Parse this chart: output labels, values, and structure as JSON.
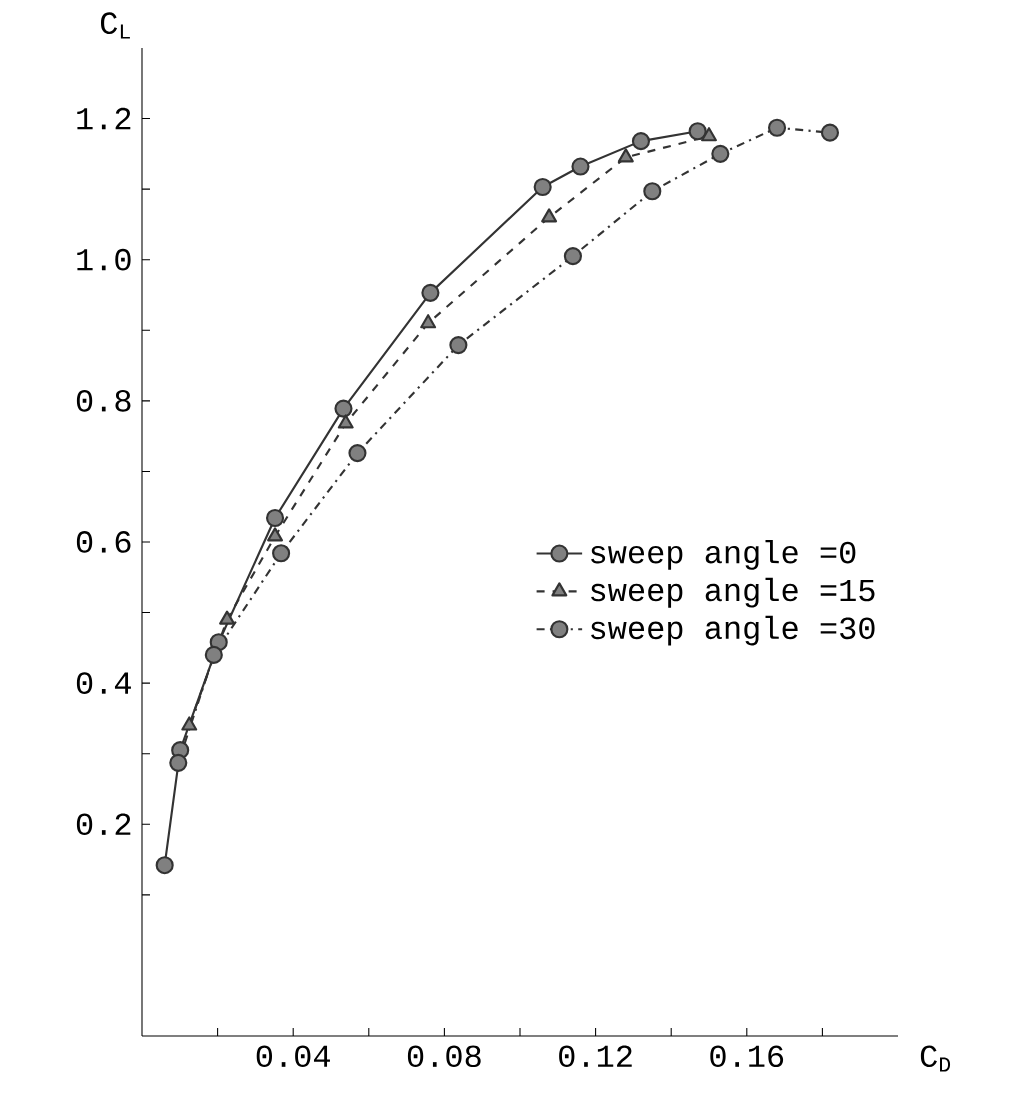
{
  "chart_data": {
    "type": "line",
    "xlabel": "C$_{D}$",
    "ylabel": "C$_{L}$",
    "xlim": [
      0,
      0.2
    ],
    "ylim": [
      -0.1,
      1.3
    ],
    "xticks": [
      {
        "value": 0.02,
        "label": null
      },
      0.04,
      {
        "value": 0.06,
        "label": null
      },
      0.08,
      {
        "value": 0.1,
        "label": null
      },
      0.12,
      {
        "value": 0.14,
        "label": null
      },
      0.16,
      {
        "value": 0.18,
        "label": null
      }
    ],
    "yticks": [
      {
        "value": 0.1,
        "label": null
      },
      0.2,
      {
        "value": 0.3,
        "label": null
      },
      0.4,
      {
        "value": 0.5,
        "label": null
      },
      0.6,
      {
        "value": 0.7,
        "label": null
      },
      0.8,
      {
        "value": 0.9,
        "label": null
      },
      {
        "value": 1.0,
        "label": "1.0"
      },
      {
        "value": 1.1,
        "label": null
      },
      1.2
    ],
    "grid": false,
    "legend": "right",
    "series": [
      {
        "name": "sweep angle =0",
        "color": "#333333",
        "marker": "circle",
        "line_style": "solid",
        "x": [
          0.006,
          0.0101,
          0.0203,
          0.0352,
          0.0533,
          0.0763,
          0.106,
          0.116,
          0.132,
          0.147
        ],
        "values": [
          0.142,
          0.305,
          0.458,
          0.634,
          0.789,
          0.953,
          1.103,
          1.132,
          1.168,
          1.182
        ]
      },
      {
        "name": "sweep angle =15",
        "color": "#333333",
        "marker": "triangle",
        "line_style": "dashed",
        "x": [
          0.0125,
          0.0225,
          0.0352,
          0.0539,
          0.0757,
          0.1077,
          0.128,
          0.15
        ],
        "values": [
          0.34,
          0.49,
          0.608,
          0.768,
          0.91,
          1.06,
          1.145,
          1.175
        ]
      },
      {
        "name": "sweep angle =30",
        "color": "#333333",
        "marker": "circle",
        "line_style": "dashdot",
        "x": [
          0.0096,
          0.019,
          0.0368,
          0.057,
          0.0837,
          0.114,
          0.135,
          0.153,
          0.168,
          0.182
        ],
        "values": [
          0.287,
          0.44,
          0.584,
          0.726,
          0.879,
          1.005,
          1.097,
          1.15,
          1.187,
          1.18
        ]
      }
    ]
  }
}
